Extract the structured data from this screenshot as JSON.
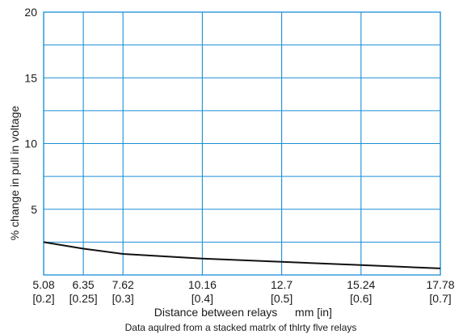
{
  "chart_data": {
    "type": "line",
    "xlabel": "Distance between relays",
    "xunit": "mm [in]",
    "ylabel": "% change in pull in voltage",
    "note": "Data aqulred from a stacked matrlx of thlrty flve relays",
    "xlim": [
      5.08,
      17.78
    ],
    "ylim": [
      0,
      20
    ],
    "x_ticks": [
      {
        "value": 5.08,
        "label_mm": "5.08",
        "label_in": "[0.2]"
      },
      {
        "value": 6.35,
        "label_mm": "6.35",
        "label_in": "[0.25]"
      },
      {
        "value": 7.62,
        "label_mm": "7.62",
        "label_in": "[0.3]"
      },
      {
        "value": 10.16,
        "label_mm": "10.16",
        "label_in": "[0.4]"
      },
      {
        "value": 12.7,
        "label_mm": "12.7",
        "label_in": "[0.5]"
      },
      {
        "value": 15.24,
        "label_mm": "15.24",
        "label_in": "[0.6]"
      },
      {
        "value": 17.78,
        "label_mm": "17.78",
        "label_in": "[0.7]"
      }
    ],
    "y_ticks": [
      {
        "value": 5,
        "label": "5"
      },
      {
        "value": 10,
        "label": "10"
      },
      {
        "value": 15,
        "label": "15"
      },
      {
        "value": 20,
        "label": "20"
      }
    ],
    "y_grid": [
      2.5,
      5,
      7.5,
      10,
      12.5,
      15,
      17.5,
      20
    ],
    "grid": true,
    "colors": {
      "grid": "#1a8fd6",
      "line": "#111111",
      "text": "#1a1a1a"
    },
    "series": [
      {
        "x": [
          5.08,
          6.35,
          7.62,
          10.16,
          12.7,
          15.24,
          17.78
        ],
        "y": [
          2.5,
          2.0,
          1.6,
          1.25,
          1.0,
          0.75,
          0.5
        ]
      }
    ]
  }
}
